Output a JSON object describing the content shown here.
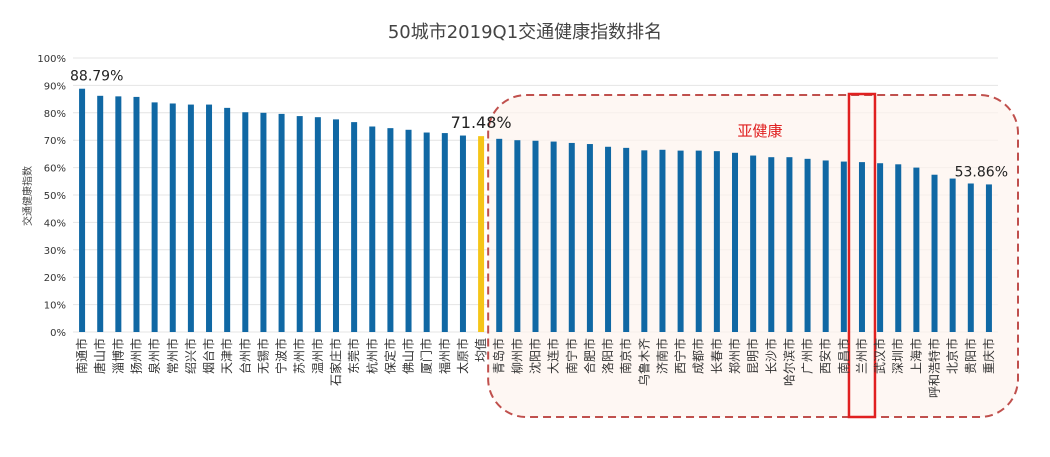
{
  "chart_data": {
    "type": "bar",
    "title": "50城市2019Q1交通健康指数排名",
    "ylabel": "交通健康指数",
    "xlabel": "",
    "ylim": [
      0,
      100
    ],
    "yticks": [
      "0%",
      "10%",
      "20%",
      "30%",
      "40%",
      "50%",
      "60%",
      "70%",
      "80%",
      "90%",
      "100%"
    ],
    "grid": true,
    "categories": [
      "南通市",
      "唐山市",
      "淄博市",
      "扬州市",
      "泉州市",
      "常州市",
      "绍兴市",
      "烟台市",
      "天津市",
      "台州市",
      "无锡市",
      "宁波市",
      "苏州市",
      "温州市",
      "石家庄市",
      "东莞市",
      "杭州市",
      "保定市",
      "佛山市",
      "厦门市",
      "福州市",
      "太原市",
      "均值",
      "青岛市",
      "柳州市",
      "沈阳市",
      "大连市",
      "南宁市",
      "合肥市",
      "洛阳市",
      "南京市",
      "乌鲁木齐",
      "济南市",
      "西宁市",
      "成都市",
      "长春市",
      "郑州市",
      "昆明市",
      "长沙市",
      "哈尔滨市",
      "广州市",
      "西安市",
      "南昌市",
      "兰州市",
      "武汉市",
      "深圳市",
      "上海市",
      "呼和浩特市",
      "北京市",
      "贵阳市",
      "重庆市"
    ],
    "values": [
      88.79,
      86.2,
      86.0,
      85.8,
      83.8,
      83.4,
      83.0,
      83.0,
      81.8,
      80.2,
      80.0,
      79.6,
      78.8,
      78.4,
      77.6,
      76.6,
      75.0,
      74.4,
      73.8,
      72.8,
      72.6,
      71.7,
      71.48,
      70.5,
      70.0,
      69.8,
      69.5,
      69.0,
      68.6,
      67.6,
      67.2,
      66.3,
      66.5,
      66.2,
      66.2,
      66.0,
      65.4,
      64.4,
      63.8,
      63.8,
      63.2,
      62.6,
      62.2,
      62.0,
      61.6,
      61.2,
      60.0,
      57.4,
      56.0,
      54.2,
      53.86
    ],
    "colors": {
      "bar": "#1068a4",
      "highlight": "#f5c518",
      "grid": "#e4e4e4",
      "region": "#c0504d",
      "annotation": "#e02020"
    },
    "annotations": [
      {
        "category": "南通市",
        "text": "88.79%"
      },
      {
        "category": "均值",
        "text": "71.48%"
      },
      {
        "category": "重庆市",
        "text": "53.86%"
      }
    ],
    "region_label": "亚健康",
    "highlight_category": "均值",
    "boxed_category": "兰州市"
  }
}
